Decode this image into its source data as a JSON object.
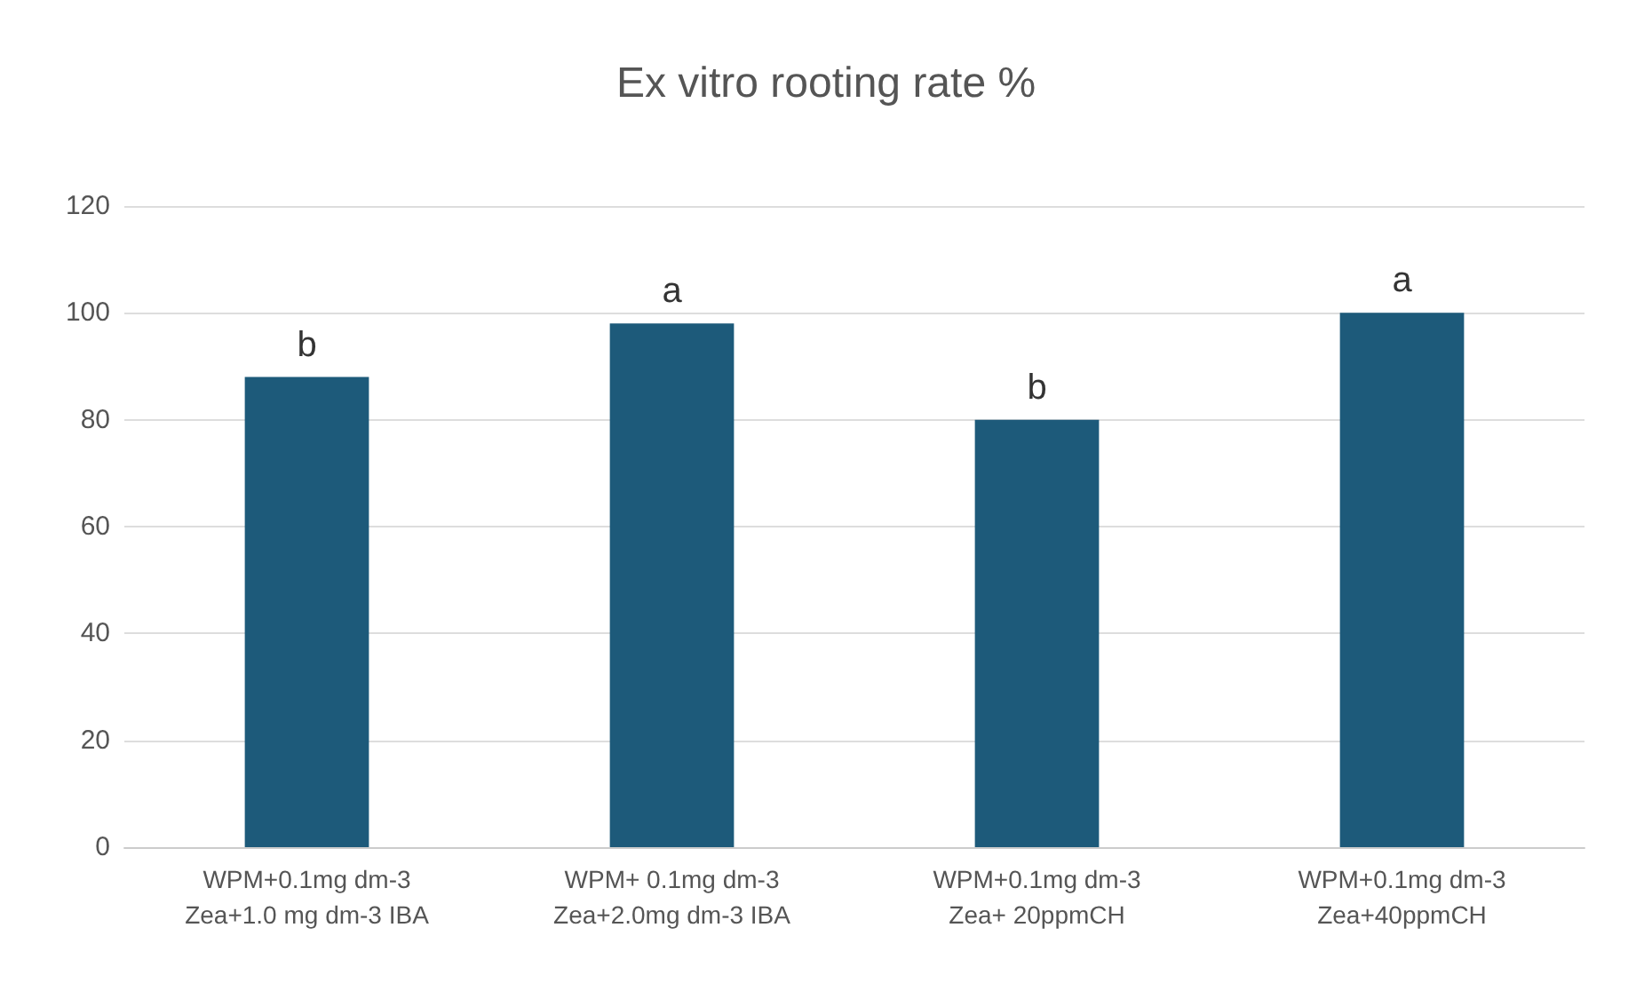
{
  "chart_data": {
    "type": "bar",
    "title": "Ex vitro rooting rate %",
    "categories": [
      "WPM+0.1mg dm-3\nZea+1.0 mg dm-3 IBA",
      "WPM+ 0.1mg dm-3\nZea+2.0mg dm-3 IBA",
      "WPM+0.1mg dm-3\nZea+ 20ppmCH",
      "WPM+0.1mg dm-3\nZea+40ppmCH"
    ],
    "values": [
      88,
      98,
      80,
      100
    ],
    "color": "#1d5a7a",
    "ylim": [
      0,
      120
    ],
    "yticks": [
      0,
      20,
      40,
      60,
      80,
      100,
      120
    ],
    "grid": "y",
    "annotations": [
      {
        "text": "b",
        "x": "WPM+0.1mg dm-3\nZea+1.0 mg dm-3 IBA",
        "y": 88
      },
      {
        "text": "a",
        "x": "WPM+ 0.1mg dm-3\nZea+2.0mg dm-3 IBA",
        "y": 98
      },
      {
        "text": "b",
        "x": "WPM+0.1mg dm-3\nZea+ 20ppmCH",
        "y": 80
      },
      {
        "text": "a",
        "x": "WPM+0.1mg dm-3\nZea+40ppmCH",
        "y": 100
      }
    ]
  }
}
